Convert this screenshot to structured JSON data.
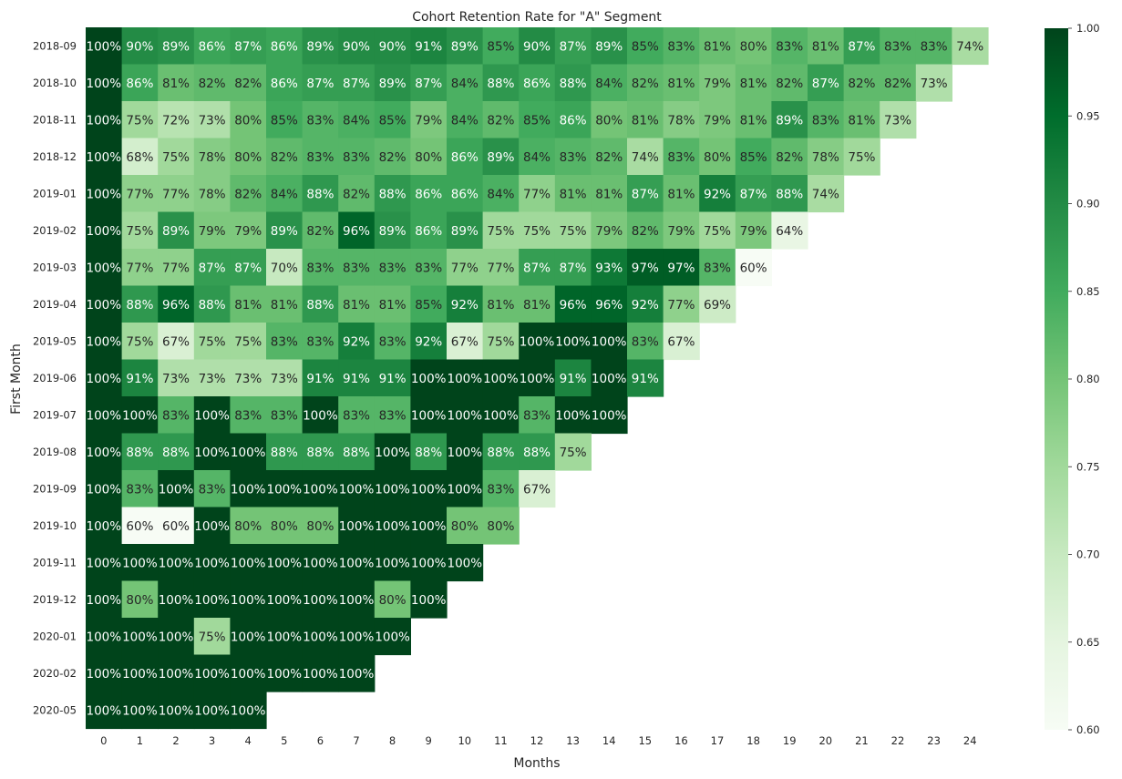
{
  "chart_data": {
    "type": "heatmap",
    "title": "Cohort Retention Rate for \"A\" Segment",
    "xlabel": "Months",
    "ylabel": "First Month",
    "x": [
      "0",
      "1",
      "2",
      "3",
      "4",
      "5",
      "6",
      "7",
      "8",
      "9",
      "10",
      "11",
      "12",
      "13",
      "14",
      "15",
      "16",
      "17",
      "18",
      "19",
      "20",
      "21",
      "22",
      "23",
      "24"
    ],
    "y": [
      "2018-09",
      "2018-10",
      "2018-11",
      "2018-12",
      "2019-01",
      "2019-02",
      "2019-03",
      "2019-04",
      "2019-05",
      "2019-06",
      "2019-07",
      "2019-08",
      "2019-09",
      "2019-10",
      "2019-11",
      "2019-12",
      "2020-01",
      "2020-02",
      "2020-05"
    ],
    "values": [
      [
        100,
        90,
        89,
        86,
        87,
        86,
        89,
        90,
        90,
        91,
        89,
        85,
        90,
        87,
        89,
        85,
        83,
        81,
        80,
        83,
        81,
        87,
        83,
        83,
        74
      ],
      [
        100,
        86,
        81,
        82,
        82,
        86,
        87,
        87,
        89,
        87,
        84,
        88,
        86,
        88,
        84,
        82,
        81,
        79,
        81,
        82,
        87,
        82,
        82,
        73
      ],
      [
        100,
        75,
        72,
        73,
        80,
        85,
        83,
        84,
        85,
        79,
        84,
        82,
        85,
        86,
        80,
        81,
        78,
        79,
        81,
        89,
        83,
        81,
        73
      ],
      [
        100,
        68,
        75,
        78,
        80,
        82,
        83,
        83,
        82,
        80,
        86,
        89,
        84,
        83,
        82,
        74,
        83,
        80,
        85,
        82,
        78,
        75
      ],
      [
        100,
        77,
        77,
        78,
        82,
        84,
        88,
        82,
        88,
        86,
        86,
        84,
        77,
        81,
        81,
        87,
        81,
        92,
        87,
        88,
        74
      ],
      [
        100,
        75,
        89,
        79,
        79,
        89,
        82,
        96,
        89,
        86,
        89,
        75,
        75,
        75,
        79,
        82,
        79,
        75,
        79,
        64
      ],
      [
        100,
        77,
        77,
        87,
        87,
        70,
        83,
        83,
        83,
        83,
        77,
        77,
        87,
        87,
        93,
        97,
        97,
        83,
        60
      ],
      [
        100,
        88,
        96,
        88,
        81,
        81,
        88,
        81,
        81,
        85,
        92,
        81,
        81,
        96,
        96,
        92,
        77,
        69
      ],
      [
        100,
        75,
        67,
        75,
        75,
        83,
        83,
        92,
        83,
        92,
        67,
        75,
        100,
        100,
        100,
        83,
        67
      ],
      [
        100,
        91,
        73,
        73,
        73,
        73,
        91,
        91,
        91,
        100,
        100,
        100,
        100,
        91,
        100,
        91
      ],
      [
        100,
        100,
        83,
        100,
        83,
        83,
        100,
        83,
        83,
        100,
        100,
        100,
        83,
        100,
        100
      ],
      [
        100,
        88,
        88,
        100,
        100,
        88,
        88,
        88,
        100,
        88,
        100,
        88,
        88,
        75
      ],
      [
        100,
        83,
        100,
        83,
        100,
        100,
        100,
        100,
        100,
        100,
        100,
        83,
        67
      ],
      [
        100,
        60,
        60,
        100,
        80,
        80,
        80,
        100,
        100,
        100,
        80,
        80
      ],
      [
        100,
        100,
        100,
        100,
        100,
        100,
        100,
        100,
        100,
        100,
        100
      ],
      [
        100,
        80,
        100,
        100,
        100,
        100,
        100,
        100,
        80,
        100
      ],
      [
        100,
        100,
        100,
        75,
        100,
        100,
        100,
        100,
        100
      ],
      [
        100,
        100,
        100,
        100,
        100,
        100,
        100,
        100
      ],
      [
        100,
        100,
        100,
        100,
        100
      ]
    ],
    "value_format": "percent",
    "colormap": "Greens",
    "colorbar": {
      "vmin": 0.6,
      "vmax": 1.0,
      "ticks": [
        "0.60",
        "0.65",
        "0.70",
        "0.75",
        "0.80",
        "0.85",
        "0.90",
        "0.95",
        "1.00"
      ]
    },
    "grid": false,
    "legend": "colorbar-right"
  }
}
